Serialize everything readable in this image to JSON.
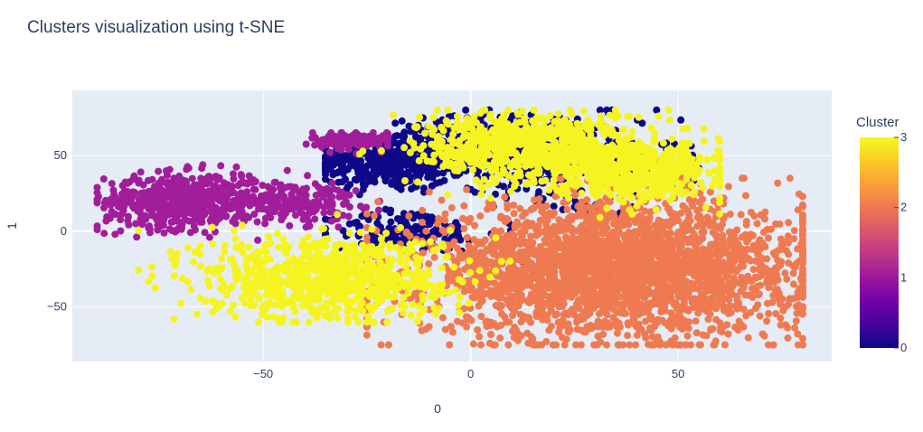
{
  "chart_data": {
    "type": "scatter",
    "title": "Clusters visualization using t-SNE",
    "xlabel": "0",
    "ylabel": "1",
    "xlim": [
      -96,
      87
    ],
    "ylim": [
      -86,
      93
    ],
    "x_ticks": [
      -50,
      0,
      50
    ],
    "y_ticks": [
      -50,
      0,
      50
    ],
    "grid": true,
    "plot_background": "#e5ecf6",
    "colorbar": {
      "title": "Cluster",
      "range": [
        0,
        3
      ],
      "ticks": [
        0,
        1,
        2,
        3
      ],
      "colorscale": [
        "#0d0887",
        "#46039f",
        "#7201a8",
        "#9c179e",
        "#bd3786",
        "#d8576b",
        "#ed7953",
        "#fb9f3a",
        "#fdca26",
        "#f0f921"
      ]
    },
    "clusters": [
      {
        "cluster": 0,
        "color": "#0d0887",
        "point_count": 1100,
        "region": {
          "x_range": [
            -35,
            55
          ],
          "y_range": [
            -20,
            80
          ]
        },
        "blobs": [
          {
            "cx": -20,
            "cy": 45,
            "sx": 9,
            "sy": 9,
            "w": 0.32
          },
          {
            "cx": 0,
            "cy": 55,
            "sx": 10,
            "sy": 10,
            "w": 0.24
          },
          {
            "cx": 20,
            "cy": 45,
            "sx": 15,
            "sy": 18,
            "w": 0.3
          },
          {
            "cx": -15,
            "cy": 0,
            "sx": 9,
            "sy": 7,
            "w": 0.14
          }
        ]
      },
      {
        "cluster": 1,
        "color": "#a11d9a",
        "point_count": 900,
        "region": {
          "x_range": [
            -90,
            -20
          ],
          "y_range": [
            -25,
            65
          ]
        },
        "blobs": [
          {
            "cx": -70,
            "cy": 20,
            "sx": 9,
            "sy": 9,
            "w": 0.6
          },
          {
            "cx": -45,
            "cy": 20,
            "sx": 9,
            "sy": 7,
            "w": 0.25
          },
          {
            "cx": -28,
            "cy": 60,
            "sx": 5,
            "sy": 3,
            "w": 0.15
          }
        ]
      },
      {
        "cluster": 2,
        "color": "#ef7a51",
        "point_count": 2800,
        "region": {
          "x_range": [
            -25,
            80
          ],
          "y_range": [
            -75,
            35
          ]
        },
        "blobs": [
          {
            "cx": 35,
            "cy": -25,
            "sx": 23,
            "sy": 22,
            "w": 1.0
          }
        ]
      },
      {
        "cluster": 3,
        "color": "#f5f421",
        "point_count": 2000,
        "region": {
          "x_range": [
            -80,
            60
          ],
          "y_range": [
            -60,
            80
          ]
        },
        "blobs": [
          {
            "cx": -35,
            "cy": -30,
            "sx": 15,
            "sy": 14,
            "w": 0.4
          },
          {
            "cx": 15,
            "cy": 55,
            "sx": 14,
            "sy": 12,
            "w": 0.35
          },
          {
            "cx": 40,
            "cy": 40,
            "sx": 10,
            "sy": 10,
            "w": 0.25
          }
        ]
      }
    ]
  }
}
